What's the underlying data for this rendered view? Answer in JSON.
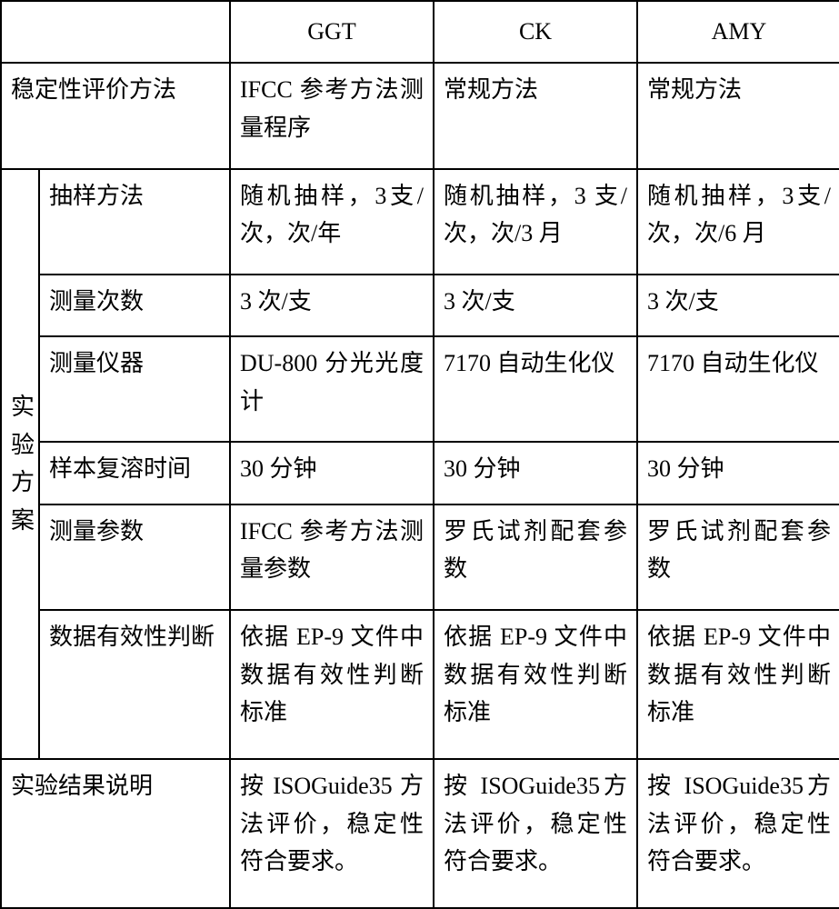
{
  "table": {
    "border_color": "#000000",
    "background_color": "#ffffff",
    "font_size": 26,
    "headers": {
      "col3": "GGT",
      "col4": "CK",
      "col5": "AMY"
    },
    "rows": {
      "row2": {
        "label": "稳定性评价方法",
        "ggt": "IFCC 参考方法测量程序",
        "ck": "常规方法",
        "amy": "常规方法"
      },
      "section_label": "实验方案",
      "row3": {
        "label": "抽样方法",
        "ggt": "随机抽样，3支/次，次/年",
        "ck": "随机抽样，3 支/次，次/3 月",
        "amy": "随机抽样，3支/次，次/6 月"
      },
      "row4": {
        "label": "测量次数",
        "ggt": "3 次/支",
        "ck": "3 次/支",
        "amy": "3 次/支"
      },
      "row5": {
        "label": "测量仪器",
        "ggt": "DU-800 分光光度计",
        "ck": "7170 自动生化仪",
        "amy": "7170 自动生化仪"
      },
      "row6": {
        "label": "样本复溶时间",
        "ggt": "30 分钟",
        "ck": "30 分钟",
        "amy": "30 分钟"
      },
      "row7": {
        "label": "测量参数",
        "ggt": "IFCC 参考方法测量参数",
        "ck": "罗氏试剂配套参数",
        "amy": "罗氏试剂配套参数"
      },
      "row8": {
        "label": "数据有效性判断",
        "ggt": "依据 EP-9 文件中数据有效性判断标准",
        "ck": "依据 EP-9 文件中数据有效性判断标准",
        "amy": "依据 EP-9 文件中数据有效性判断标准"
      },
      "row9": {
        "label": "实验结果说明",
        "ggt": "按 ISOGuide35 方法评价，稳定性符合要求。",
        "ck": "按 ISOGuide35方法评价，稳定性符合要求。",
        "amy": "按 ISOGuide35方法评价，稳定性符合要求。"
      }
    }
  }
}
